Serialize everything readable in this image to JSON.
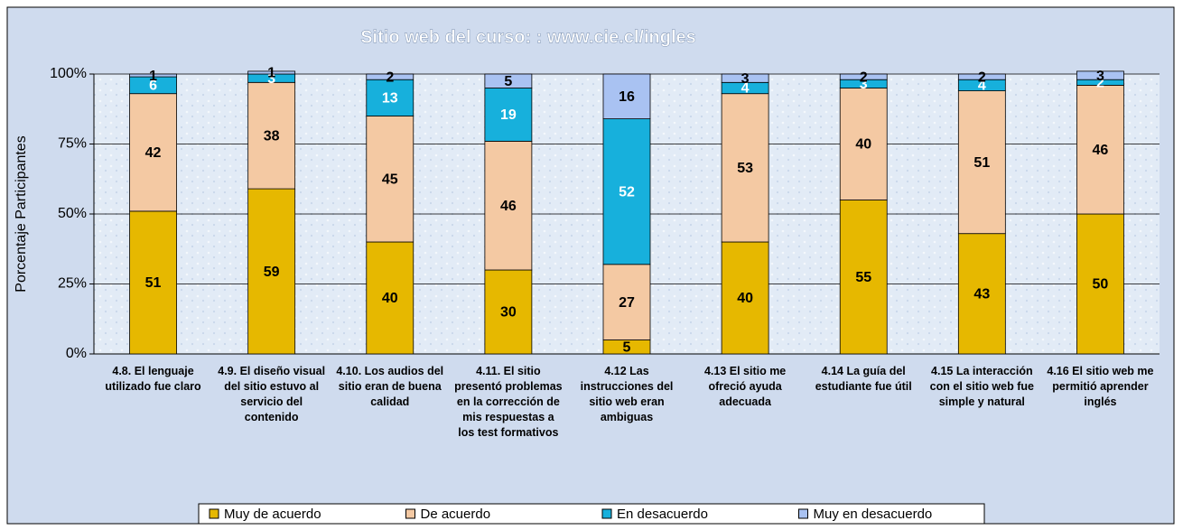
{
  "chart_data": {
    "type": "stacked_bar",
    "title": "Sitio web del curso: : www.cie.cl/ingles",
    "y_label": "Porcentaje Participantes",
    "categories": [
      "4.8. El lenguaje utilizado fue claro",
      "4.9. El diseño visual del sitio estuvo al servicio del contenido",
      "4.10. Los audios del sitio eran de buena calidad",
      "4.11. El sitio presentó problemas en la corrección de mis respuestas a los test formativos",
      "4.12 Las instrucciones del sitio web eran ambiguas",
      "4.13 El sitio me ofreció ayuda adecuada",
      "4.14 La guía del estudiante fue útil",
      "4.15 La interacción con el sitio web fue simple y natural",
      "4.16 El sitio web me permitió aprender inglés"
    ],
    "series": [
      {
        "name": "Muy de acuerdo",
        "color": "#e6b800",
        "label_color": "#000000",
        "values": [
          51,
          59,
          40,
          30,
          5,
          40,
          55,
          43,
          50
        ]
      },
      {
        "name": "De acuerdo",
        "color": "#f4c9a3",
        "label_color": "#000000",
        "values": [
          42,
          38,
          45,
          46,
          27,
          53,
          40,
          51,
          46
        ]
      },
      {
        "name": "En desacuerdo",
        "color": "#17b0dc",
        "label_color": "#ffffff",
        "values": [
          6,
          3,
          13,
          19,
          52,
          4,
          3,
          4,
          2
        ]
      },
      {
        "name": "Muy en desacuerdo",
        "color": "#a9c2f2",
        "label_color": "#000000",
        "values": [
          1,
          1,
          2,
          5,
          16,
          3,
          2,
          2,
          3
        ]
      }
    ],
    "ylim": [
      0,
      100
    ],
    "yticks": [
      {
        "value": 0,
        "label": "0%"
      },
      {
        "value": 25,
        "label": "25%"
      },
      {
        "value": 50,
        "label": "50%"
      },
      {
        "value": 75,
        "label": "75%"
      },
      {
        "value": 100,
        "label": "100%"
      }
    ],
    "grid": true,
    "legend": "bottom"
  }
}
